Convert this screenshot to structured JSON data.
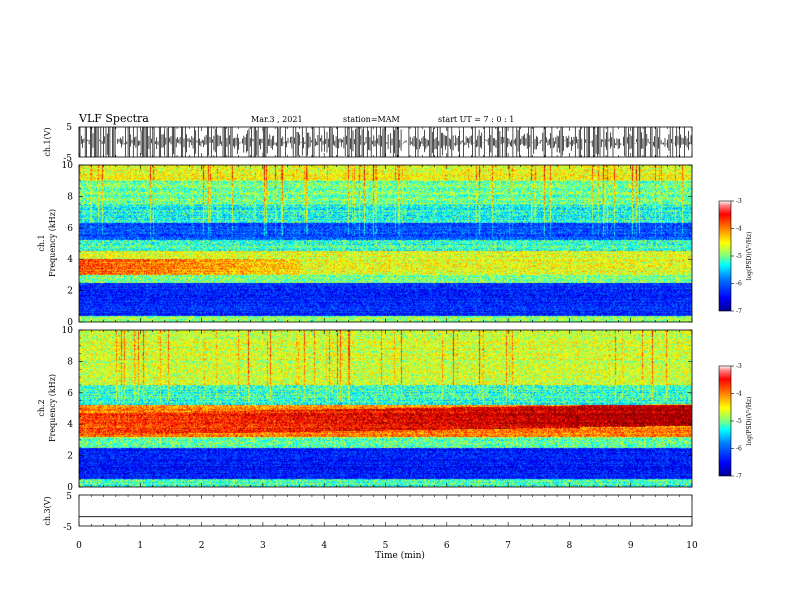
{
  "header": {
    "title": "VLF Spectra",
    "date": "Mar.3 , 2021",
    "station": "station=MAM",
    "start_ut": "start UT =  7 : 0 : 1"
  },
  "chart_data": [
    {
      "id": "ch1-waveform",
      "type": "line",
      "ylabel": "ch.1(V)",
      "ylim": [
        -5,
        5
      ],
      "yticks": [
        "5",
        "-5"
      ],
      "description_pattern": "dense impulsive spikes across full range"
    },
    {
      "id": "ch1-spectrogram",
      "type": "heatmap",
      "ylabel_line1": "ch.1",
      "ylabel_line2": "Frequency (kHz)",
      "ylim": [
        0,
        10
      ],
      "yticks": [
        "0",
        "2",
        "4",
        "6",
        "8",
        "10"
      ],
      "xlim": [
        0,
        10
      ],
      "colorbar": {
        "label": "log(PSD)(V²/Hz)",
        "range": [
          -7,
          -3
        ],
        "ticks": [
          "-3",
          "-4",
          "-5",
          "-6",
          "-7"
        ]
      },
      "bands_khz": [
        {
          "from": 0,
          "to": 0.4,
          "level": -4.8
        },
        {
          "from": 0.4,
          "to": 2.5,
          "level": -6.3
        },
        {
          "from": 2.5,
          "to": 3.0,
          "level": -5.0
        },
        {
          "from": 3.0,
          "to": 4.5,
          "level": -4.6
        },
        {
          "from": 4.5,
          "to": 5.2,
          "level": -5.2
        },
        {
          "from": 5.2,
          "to": 6.3,
          "level": -6.1
        },
        {
          "from": 6.3,
          "to": 7.5,
          "level": -5.3
        },
        {
          "from": 7.5,
          "to": 9.0,
          "level": -5.0
        },
        {
          "from": 9.0,
          "to": 10,
          "level": -4.6
        }
      ]
    },
    {
      "id": "ch2-spectrogram",
      "type": "heatmap",
      "ylabel_line1": "ch.2",
      "ylabel_line2": "Frequency (kHz)",
      "ylim": [
        0,
        10
      ],
      "yticks": [
        "0",
        "2",
        "4",
        "6",
        "8",
        "10"
      ],
      "xlim": [
        0,
        10
      ],
      "colorbar": {
        "label": "log(PSD)(V²/Hz)",
        "range": [
          -7,
          -3
        ],
        "ticks": [
          "-3",
          "-4",
          "-5",
          "-6",
          "-7"
        ]
      },
      "bands_khz": [
        {
          "from": 0,
          "to": 0.5,
          "level": -5.2
        },
        {
          "from": 0.5,
          "to": 2.5,
          "level": -6.4
        },
        {
          "from": 2.5,
          "to": 3.2,
          "level": -5.0
        },
        {
          "from": 3.2,
          "to": 5.2,
          "level": -4.0
        },
        {
          "from": 5.2,
          "to": 6.5,
          "level": -5.2
        },
        {
          "from": 6.5,
          "to": 10,
          "level": -4.7
        }
      ]
    },
    {
      "id": "ch3-waveform",
      "type": "line",
      "ylabel": "ch.3(V)",
      "ylim": [
        -5,
        5
      ],
      "yticks": [
        "5",
        "-5"
      ],
      "x": [
        0,
        10
      ],
      "y": [
        -2,
        -2
      ]
    }
  ],
  "xaxis": {
    "label": "Time (min)",
    "range": [
      0,
      10
    ],
    "ticks": [
      "0",
      "1",
      "2",
      "3",
      "4",
      "5",
      "6",
      "7",
      "8",
      "9",
      "10"
    ]
  },
  "colors": {
    "jet": [
      "#00008f",
      "#0000ff",
      "#0080ff",
      "#00ffff",
      "#80ff80",
      "#ffff00",
      "#ff8000",
      "#ff0000",
      "#800000"
    ]
  }
}
